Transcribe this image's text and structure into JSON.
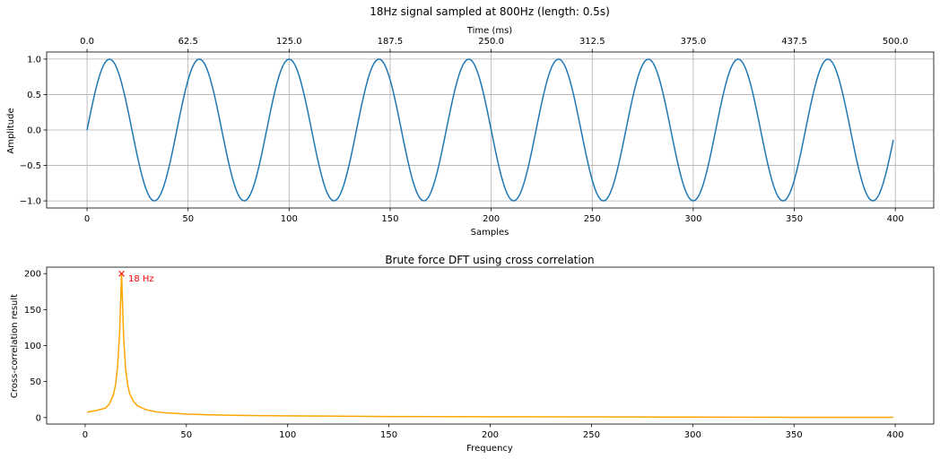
{
  "figure": {
    "suptitle": "18Hz signal sampled at 800Hz (length: 0.5s)"
  },
  "chart_data": [
    {
      "type": "line",
      "title": "",
      "xlabel": "Samples",
      "ylabel": "Amplitude",
      "top_xlabel": "Time (ms)",
      "xlim": [
        -20,
        419
      ],
      "ylim": [
        -1.1,
        1.1
      ],
      "xticks": [
        0,
        50,
        100,
        150,
        200,
        250,
        300,
        350,
        400
      ],
      "yticks": [
        1.0,
        0.5,
        0.0,
        -0.5,
        -1.0
      ],
      "ytick_labels": [
        "1.0",
        "0.5",
        "0.0",
        "−0.5",
        "−1.0"
      ],
      "top_xticks": [
        0,
        62.5,
        125,
        187.5,
        250,
        312.5,
        375,
        437.5,
        500
      ],
      "top_xtick_labels": [
        "0.0",
        "62.5",
        "125.0",
        "187.5",
        "250.0",
        "312.5",
        "375.0",
        "437.5",
        "500.0"
      ],
      "grid": true,
      "series": [
        {
          "color": "#1f77b4",
          "function": "sin(2*pi*18*n/800)",
          "x_start": 0,
          "x_end": 399,
          "x_step": 1
        }
      ]
    },
    {
      "type": "line",
      "title": "Brute force DFT using cross correlation",
      "xlabel": "Frequency",
      "ylabel": "Cross-correlation result",
      "xlim": [
        -19,
        419
      ],
      "ylim": [
        -9,
        209
      ],
      "xticks": [
        0,
        50,
        100,
        150,
        200,
        250,
        300,
        350,
        400
      ],
      "yticks": [
        0,
        50,
        100,
        150,
        200
      ],
      "grid": false,
      "series": [
        {
          "color": "#ffa500",
          "x": [
            1,
            5,
            10,
            12,
            14,
            15,
            16,
            17,
            18,
            19,
            20,
            21,
            22,
            24,
            26,
            30,
            35,
            40,
            50,
            60,
            80,
            100,
            150,
            200,
            250,
            300,
            350,
            399
          ],
          "y": [
            7.5,
            9.5,
            13,
            19,
            32,
            45,
            70,
            116,
            200,
            112,
            68,
            46,
            33,
            22,
            16,
            11,
            8,
            6.5,
            4.8,
            3.9,
            2.9,
            2.3,
            1.5,
            1.1,
            0.9,
            0.6,
            0.4,
            0.3
          ]
        }
      ],
      "annotation": {
        "x": 18,
        "y": 200,
        "marker": "x",
        "color": "#ff0000",
        "text": "18 Hz"
      }
    }
  ]
}
